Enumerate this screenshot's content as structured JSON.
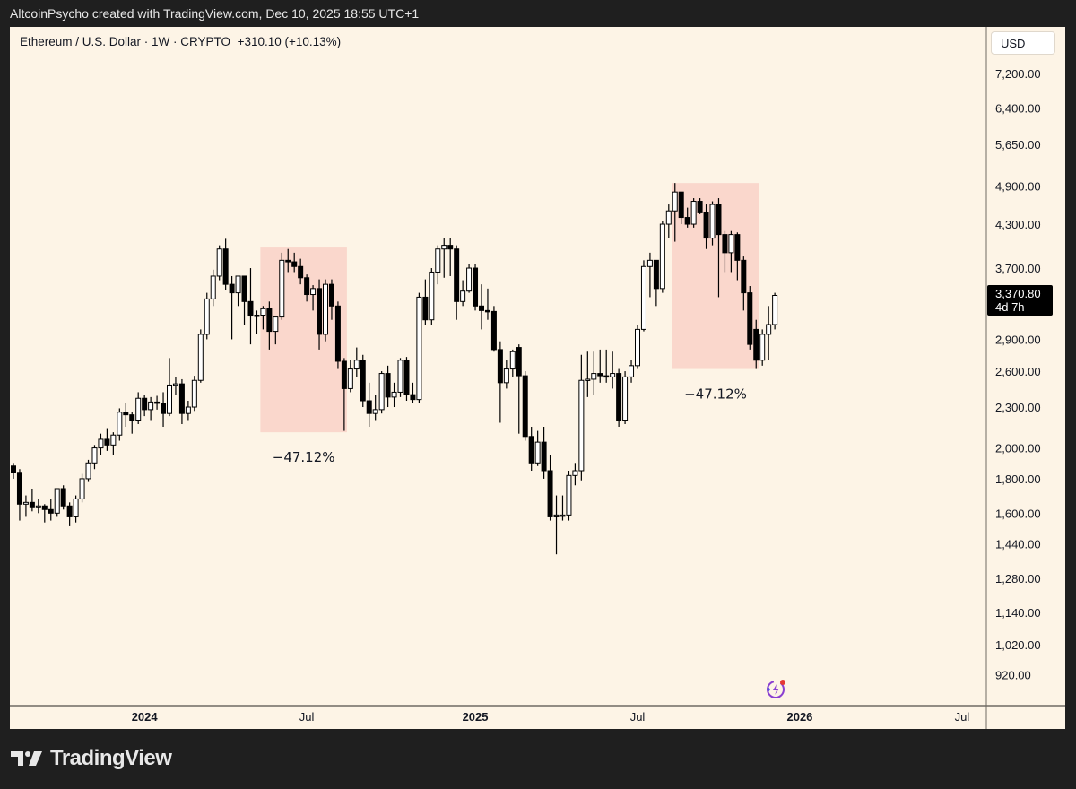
{
  "header": {
    "attribution": "AltcoinPsycho created with TradingView.com, Dec 10, 2025 18:55 UTC+1"
  },
  "legend": {
    "symbol": "Ethereum / U.S. Dollar · 1W · CRYPTO",
    "change": "+310.10 (+10.13%)"
  },
  "currency_button": "USD",
  "current_price": {
    "value": "3,370.80",
    "countdown": "4d 7h"
  },
  "brand": {
    "name": "TradingView"
  },
  "colors": {
    "background": "#fdf4e6",
    "frame": "#1f1f1f",
    "box": "#f9cfc6",
    "candle": "#000000"
  },
  "chart_data": {
    "type": "candlestick",
    "title": "Ethereum / U.S. Dollar · 1W · CRYPTO",
    "scale": "log",
    "ylim": [
      880,
      7600
    ],
    "y_ticks": [
      "7,200.00",
      "6,400.00",
      "5,650.00",
      "4,900.00",
      "4,300.00",
      "3,700.00",
      "2,900.00",
      "2,600.00",
      "2,300.00",
      "2,000.00",
      "1,800.00",
      "1,600.00",
      "1,440.00",
      "1,280.00",
      "1,140.00",
      "1,020.00",
      "920.00"
    ],
    "y_tick_values": [
      7200,
      6400,
      5650,
      4900,
      4300,
      3700,
      2900,
      2600,
      2300,
      2000,
      1800,
      1600,
      1440,
      1280,
      1140,
      1020,
      920
    ],
    "x_ticks": [
      {
        "label": "2024",
        "week": 21,
        "bold": true
      },
      {
        "label": "Jul",
        "week": 47,
        "bold": false
      },
      {
        "label": "2025",
        "week": 74,
        "bold": true
      },
      {
        "label": "Jul",
        "week": 100,
        "bold": false
      },
      {
        "label": "2026",
        "week": 126,
        "bold": true
      },
      {
        "label": "Jul",
        "week": 152,
        "bold": false
      }
    ],
    "ohlc": [
      [
        1880,
        1900,
        1800,
        1840
      ],
      [
        1840,
        1860,
        1560,
        1650
      ],
      [
        1650,
        1700,
        1580,
        1660
      ],
      [
        1660,
        1740,
        1610,
        1630
      ],
      [
        1630,
        1680,
        1600,
        1640
      ],
      [
        1640,
        1650,
        1550,
        1620
      ],
      [
        1620,
        1680,
        1560,
        1600
      ],
      [
        1600,
        1710,
        1580,
        1740
      ],
      [
        1740,
        1760,
        1620,
        1640
      ],
      [
        1640,
        1660,
        1530,
        1580
      ],
      [
        1580,
        1700,
        1550,
        1680
      ],
      [
        1680,
        1830,
        1660,
        1800
      ],
      [
        1800,
        1920,
        1780,
        1900
      ],
      [
        1900,
        2020,
        1860,
        2000
      ],
      [
        2000,
        2100,
        1950,
        2060
      ],
      [
        2060,
        2140,
        1980,
        2020
      ],
      [
        2020,
        2110,
        1950,
        2090
      ],
      [
        2090,
        2290,
        2050,
        2260
      ],
      [
        2260,
        2330,
        2150,
        2240
      ],
      [
        2240,
        2260,
        2100,
        2200
      ],
      [
        2200,
        2420,
        2170,
        2370
      ],
      [
        2370,
        2400,
        2230,
        2280
      ],
      [
        2280,
        2380,
        2200,
        2340
      ],
      [
        2340,
        2390,
        2280,
        2330
      ],
      [
        2330,
        2420,
        2150,
        2250
      ],
      [
        2250,
        2720,
        2230,
        2480
      ],
      [
        2480,
        2550,
        2400,
        2490
      ],
      [
        2490,
        2530,
        2170,
        2250
      ],
      [
        2250,
        2350,
        2200,
        2300
      ],
      [
        2300,
        2560,
        2270,
        2520
      ],
      [
        2520,
        3000,
        2500,
        2950
      ],
      [
        2950,
        3400,
        2900,
        3330
      ],
      [
        3330,
        3680,
        3250,
        3600
      ],
      [
        3600,
        4000,
        3550,
        3950
      ],
      [
        3950,
        4090,
        3430,
        3500
      ],
      [
        3500,
        3600,
        2900,
        3400
      ],
      [
        3400,
        3600,
        3250,
        3600
      ],
      [
        3600,
        3600,
        3050,
        3300
      ],
      [
        3300,
        3700,
        2850,
        3140
      ],
      [
        3140,
        3200,
        2950,
        3150
      ],
      [
        3150,
        3250,
        3000,
        3220
      ],
      [
        3220,
        3300,
        2800,
        2980
      ],
      [
        2980,
        3100,
        2850,
        3130
      ],
      [
        3130,
        3900,
        3100,
        3800
      ],
      [
        3800,
        3950,
        3650,
        3780
      ],
      [
        3780,
        3900,
        3650,
        3720
      ],
      [
        3720,
        3820,
        3500,
        3580
      ],
      [
        3580,
        3620,
        3300,
        3380
      ],
      [
        3380,
        3490,
        3200,
        3450
      ],
      [
        3450,
        3560,
        2800,
        2950
      ],
      [
        2950,
        3560,
        2880,
        3500
      ],
      [
        3500,
        3560,
        3100,
        3250
      ],
      [
        3250,
        3300,
        2620,
        2690
      ],
      [
        2690,
        2720,
        2120,
        2450
      ],
      [
        2450,
        2700,
        2420,
        2620
      ],
      [
        2620,
        2820,
        2550,
        2700
      ],
      [
        2700,
        2750,
        2300,
        2350
      ],
      [
        2350,
        2500,
        2150,
        2250
      ],
      [
        2250,
        2400,
        2200,
        2280
      ],
      [
        2280,
        2600,
        2250,
        2580
      ],
      [
        2580,
        2650,
        2300,
        2380
      ],
      [
        2380,
        2500,
        2300,
        2420
      ],
      [
        2420,
        2720,
        2380,
        2700
      ],
      [
        2700,
        2730,
        2350,
        2400
      ],
      [
        2400,
        2500,
        2330,
        2360
      ],
      [
        2360,
        3400,
        2330,
        3350
      ],
      [
        3350,
        3560,
        3050,
        3100
      ],
      [
        3100,
        3700,
        3050,
        3650
      ],
      [
        3650,
        4000,
        3500,
        3950
      ],
      [
        3950,
        4100,
        3580,
        4000
      ],
      [
        4000,
        4100,
        3600,
        3950
      ],
      [
        3950,
        4000,
        3100,
        3300
      ],
      [
        3300,
        3550,
        3250,
        3420
      ],
      [
        3420,
        3750,
        3400,
        3700
      ],
      [
        3700,
        3750,
        3200,
        3250
      ],
      [
        3250,
        3500,
        3000,
        3200
      ],
      [
        3200,
        3450,
        3100,
        3190
      ],
      [
        3190,
        3250,
        2780,
        2800
      ],
      [
        2800,
        2880,
        2180,
        2500
      ],
      [
        2500,
        2700,
        2450,
        2620
      ],
      [
        2620,
        2800,
        2550,
        2780
      ],
      [
        2820,
        2850,
        2100,
        2560
      ],
      [
        2560,
        2600,
        2050,
        2080
      ],
      [
        2080,
        2150,
        1850,
        1900
      ],
      [
        1900,
        2120,
        1880,
        2040
      ],
      [
        2040,
        2150,
        1800,
        1850
      ],
      [
        1850,
        1950,
        1560,
        1580
      ],
      [
        1580,
        1700,
        1390,
        1590
      ],
      [
        1590,
        1700,
        1560,
        1590
      ],
      [
        1590,
        1850,
        1560,
        1820
      ],
      [
        1820,
        1900,
        1760,
        1850
      ],
      [
        1850,
        2750,
        1790,
        2520
      ],
      [
        2520,
        2780,
        2380,
        2530
      ],
      [
        2530,
        2780,
        2400,
        2580
      ],
      [
        2580,
        2800,
        2500,
        2560
      ],
      [
        2560,
        2800,
        2500,
        2550
      ],
      [
        2550,
        2780,
        2450,
        2580
      ],
      [
        2580,
        2620,
        2150,
        2200
      ],
      [
        2200,
        2600,
        2170,
        2550
      ],
      [
        2550,
        2700,
        2500,
        2650
      ],
      [
        2650,
        3050,
        2620,
        3000
      ],
      [
        3000,
        3800,
        2980,
        3720
      ],
      [
        3720,
        3900,
        3350,
        3800
      ],
      [
        3800,
        3800,
        3250,
        3450
      ],
      [
        3450,
        4350,
        3400,
        4300
      ],
      [
        4300,
        4600,
        4100,
        4500
      ],
      [
        4500,
        4950,
        4050,
        4800
      ],
      [
        4800,
        4800,
        4300,
        4400
      ],
      [
        4400,
        4550,
        4250,
        4300
      ],
      [
        4300,
        4700,
        4250,
        4650
      ],
      [
        4650,
        4700,
        4450,
        4470
      ],
      [
        4470,
        4600,
        3950,
        4100
      ],
      [
        4100,
        4650,
        4000,
        4600
      ],
      [
        4600,
        4700,
        3350,
        4150
      ],
      [
        4150,
        4200,
        3650,
        3900
      ],
      [
        3900,
        4200,
        3650,
        4150
      ],
      [
        4150,
        4180,
        3550,
        3800
      ],
      [
        3800,
        3850,
        3200,
        3400
      ],
      [
        3400,
        3480,
        2800,
        2850
      ],
      [
        3000,
        3100,
        2620,
        2700
      ],
      [
        2700,
        3000,
        2650,
        2950
      ],
      [
        2950,
        3250,
        2700,
        3050
      ],
      [
        3050,
        3400,
        3000,
        3370
      ]
    ],
    "annotations": [
      {
        "type": "range_box",
        "start_week": 40,
        "end_week": 53,
        "top": 3970,
        "bottom": 2110,
        "label": "−47.12%"
      },
      {
        "type": "range_box",
        "start_week": 106,
        "end_week": 119,
        "top": 4950,
        "bottom": 2620,
        "label": "−47.12%"
      }
    ],
    "last_price": 3370.8
  }
}
